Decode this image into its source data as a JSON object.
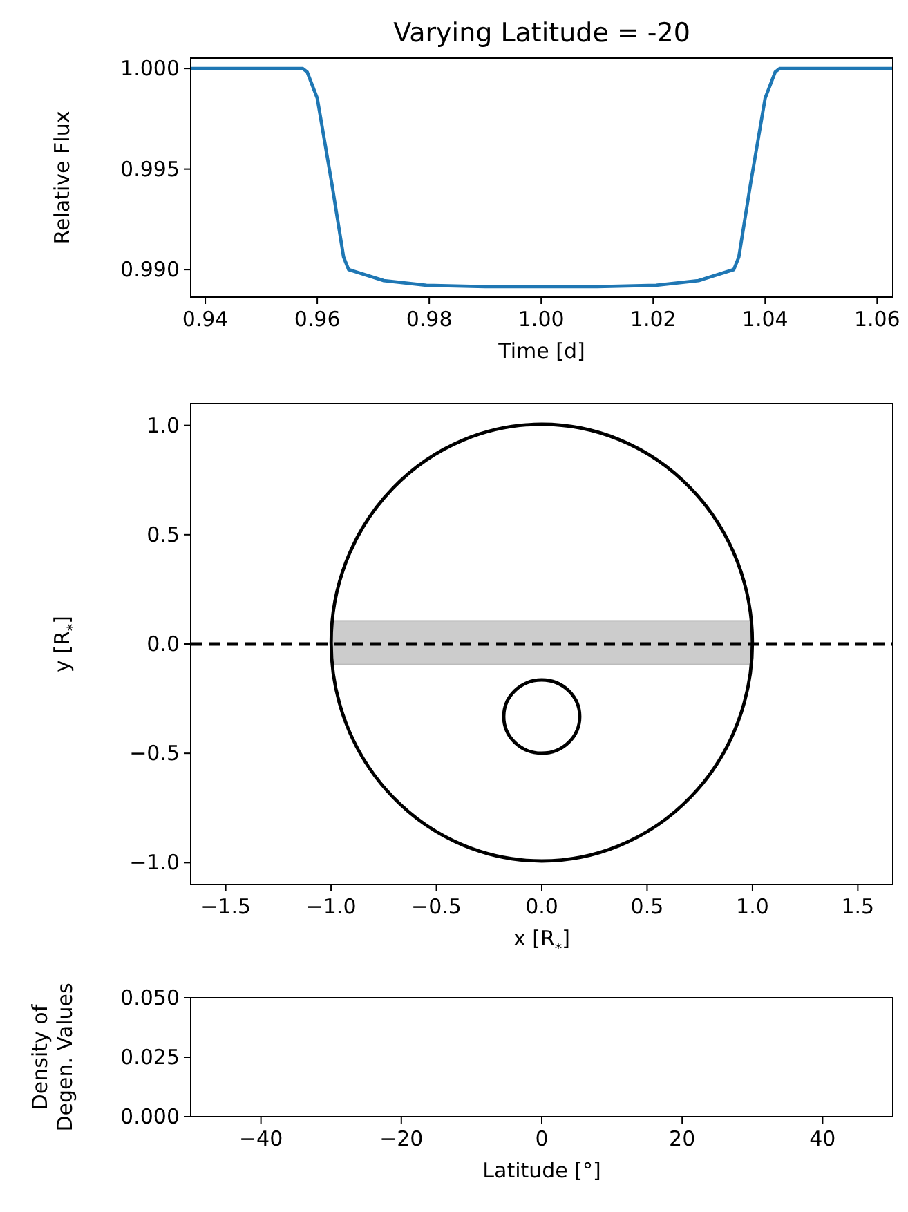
{
  "chart_data": [
    {
      "type": "line",
      "title": "Varying Latitude = -20",
      "xlabel": "Time [d]",
      "ylabel": "Relative Flux",
      "xlim": [
        0.9374,
        1.0628
      ],
      "ylim": [
        0.98863,
        1.00052
      ],
      "xticks": [
        {
          "value": 0.94,
          "label": "0.94"
        },
        {
          "value": 0.96,
          "label": "0.96"
        },
        {
          "value": 0.98,
          "label": "0.98"
        },
        {
          "value": 1.0,
          "label": "1.00"
        },
        {
          "value": 1.02,
          "label": "1.02"
        },
        {
          "value": 1.04,
          "label": "1.04"
        },
        {
          "value": 1.06,
          "label": "1.06"
        }
      ],
      "yticks": [
        {
          "value": 0.99,
          "label": "0.990"
        },
        {
          "value": 0.995,
          "label": "0.995"
        },
        {
          "value": 1.0,
          "label": "1.000"
        }
      ],
      "series": [
        {
          "color": "#1f77b4",
          "x": [
            0.9374,
            0.95,
            0.9574,
            0.9582,
            0.96,
            0.9626,
            0.9647,
            0.9656,
            0.9719,
            0.9795,
            0.99,
            1.0,
            1.01,
            1.0205,
            1.0281,
            1.0344,
            1.0353,
            1.0374,
            1.04,
            1.0418,
            1.0426,
            1.05,
            1.0628
          ],
          "values": [
            1.0,
            1.0,
            1.0,
            0.99983,
            0.99852,
            0.99428,
            0.99063,
            0.99,
            0.98945,
            0.98922,
            0.98915,
            0.98915,
            0.98915,
            0.98922,
            0.98945,
            0.99,
            0.99063,
            0.99428,
            0.99852,
            0.99983,
            1.0,
            1.0,
            1.0
          ]
        }
      ]
    },
    {
      "type": "line",
      "xlabel": "x [R$_{*}$]",
      "ylabel": "y [R$_{*}$]",
      "xlim": [
        -1.666,
        1.666
      ],
      "ylim": [
        -1.1,
        1.1
      ],
      "xticks": [
        {
          "value": -1.5,
          "label": "−1.5"
        },
        {
          "value": -1,
          "label": "−1.0"
        },
        {
          "value": -0.5,
          "label": "−0.5"
        },
        {
          "value": 0,
          "label": "0.0"
        },
        {
          "value": 0.5,
          "label": "0.5"
        },
        {
          "value": 1,
          "label": "1.0"
        },
        {
          "value": 1.5,
          "label": "1.5"
        }
      ],
      "yticks": [
        {
          "value": -1,
          "label": "−1.0"
        },
        {
          "value": -0.5,
          "label": "−0.5"
        },
        {
          "value": 0,
          "label": "0.0"
        },
        {
          "value": 0.5,
          "label": "0.5"
        },
        {
          "value": 1,
          "label": "1.0"
        }
      ],
      "ref_lines": [
        {
          "axis": "y",
          "value": 0,
          "color": "#000000",
          "line_style": "dashed"
        }
      ]
    },
    {
      "type": "line",
      "xlabel": "Latitude [°]",
      "ylabel": "Density of\nDegen. Values",
      "xlim": [
        -50,
        50
      ],
      "ylim": [
        0,
        0.05
      ],
      "xticks": [
        {
          "value": -40,
          "label": "−40"
        },
        {
          "value": -20,
          "label": "−20"
        },
        {
          "value": 0,
          "label": "0"
        },
        {
          "value": 20,
          "label": "20"
        },
        {
          "value": 40,
          "label": "40"
        }
      ],
      "yticks": [
        {
          "value": 0,
          "label": "0.000"
        },
        {
          "value": 0.025,
          "label": "0.025"
        },
        {
          "value": 0.05,
          "label": "0.050"
        }
      ],
      "grid": false
    }
  ]
}
